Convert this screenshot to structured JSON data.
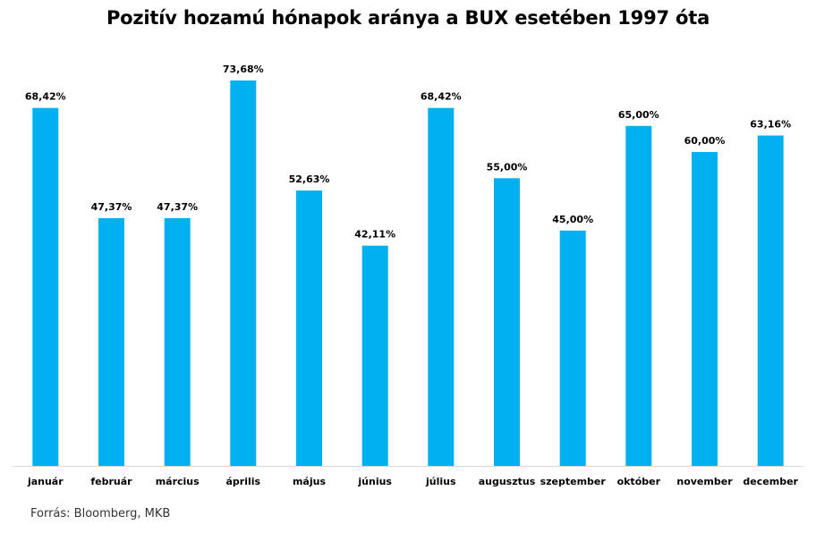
{
  "chart_data": {
    "type": "bar",
    "title": "Pozitív hozamú hónapok aránya a BUX esetében 1997 óta",
    "categories": [
      "január",
      "február",
      "március",
      "április",
      "május",
      "június",
      "július",
      "augusztus",
      "szeptember",
      "október",
      "november",
      "december"
    ],
    "values": [
      68.42,
      47.37,
      47.37,
      73.68,
      52.63,
      42.11,
      68.42,
      55.0,
      45.0,
      65.0,
      60.0,
      63.16
    ],
    "data_labels": [
      "68,42%",
      "47,37%",
      "47,37%",
      "73,68%",
      "52,63%",
      "42,11%",
      "68,42%",
      "55,00%",
      "45,00%",
      "65,00%",
      "60,00%",
      "63,16%"
    ],
    "ylim": [
      0,
      100
    ],
    "grid": false,
    "legend": "none",
    "bar_color": "#00b0f0",
    "axis_color": "#d9d9d9"
  },
  "source": "Forrás: Bloomberg, MKB"
}
